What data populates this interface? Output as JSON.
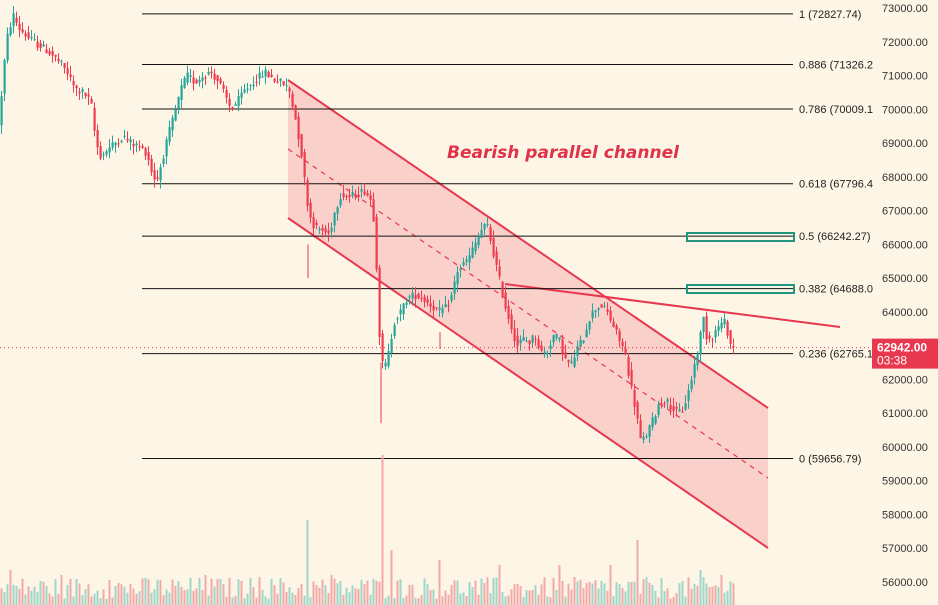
{
  "chart_data": {
    "type": "candlestick",
    "title": "Bearish parallel channel",
    "ylim": [
      55800,
      73200
    ],
    "y_ticks": [
      "73000.00",
      "72000.00",
      "71000.00",
      "70000.00",
      "69000.00",
      "68000.00",
      "67000.00",
      "66000.00",
      "65000.00",
      "64000.00",
      "63000.00",
      "62000.00",
      "61000.00",
      "60000.00",
      "59000.00",
      "58000.00",
      "57000.00",
      "56000.00"
    ],
    "fib_levels": [
      {
        "label": "1 (72827.74)",
        "price": 72827.74
      },
      {
        "label": "0.886 (71326.2",
        "price": 71326.2
      },
      {
        "label": "0.786 (70009.1",
        "price": 70009.1
      },
      {
        "label": "0.618 (67796.4",
        "price": 67796.4
      },
      {
        "label": "0.5 (66242.27)",
        "price": 66242.27
      },
      {
        "label": "0.382 (64688.0",
        "price": 64688.0
      },
      {
        "label": "0.236 (62765.1",
        "price": 62765.1
      },
      {
        "label": "0 (59656.79)",
        "price": 59656.79
      }
    ],
    "current_price": {
      "price": "62942.00",
      "countdown": "03:38",
      "value": 62942
    },
    "price_path": [
      [
        0,
        69500
      ],
      [
        4,
        71000
      ],
      [
        8,
        72100
      ],
      [
        14,
        72800
      ],
      [
        20,
        72400
      ],
      [
        30,
        72100
      ],
      [
        40,
        71900
      ],
      [
        50,
        71700
      ],
      [
        60,
        71400
      ],
      [
        68,
        71100
      ],
      [
        76,
        70600
      ],
      [
        84,
        70500
      ],
      [
        92,
        70200
      ],
      [
        97,
        69000
      ],
      [
        102,
        68600
      ],
      [
        108,
        68800
      ],
      [
        116,
        69000
      ],
      [
        124,
        69200
      ],
      [
        132,
        69000
      ],
      [
        140,
        68900
      ],
      [
        148,
        68700
      ],
      [
        154,
        68000
      ],
      [
        158,
        67900
      ],
      [
        164,
        68600
      ],
      [
        170,
        69300
      ],
      [
        176,
        69900
      ],
      [
        182,
        70600
      ],
      [
        188,
        71000
      ],
      [
        196,
        70800
      ],
      [
        204,
        71000
      ],
      [
        212,
        71100
      ],
      [
        220,
        70800
      ],
      [
        226,
        70400
      ],
      [
        232,
        70000
      ],
      [
        238,
        70200
      ],
      [
        244,
        70500
      ],
      [
        250,
        70700
      ],
      [
        258,
        70900
      ],
      [
        266,
        71100
      ],
      [
        274,
        70900
      ],
      [
        282,
        70800
      ],
      [
        290,
        70600
      ],
      [
        296,
        69800
      ],
      [
        302,
        68800
      ],
      [
        306,
        67800
      ],
      [
        310,
        66900
      ],
      [
        316,
        66500
      ],
      [
        324,
        66400
      ],
      [
        330,
        66300
      ],
      [
        336,
        67000
      ],
      [
        342,
        67500
      ],
      [
        350,
        67400
      ],
      [
        358,
        67500
      ],
      [
        366,
        67600
      ],
      [
        372,
        67300
      ],
      [
        376,
        66500
      ],
      [
        380,
        63500
      ],
      [
        384,
        62300
      ],
      [
        388,
        62500
      ],
      [
        392,
        63200
      ],
      [
        396,
        63800
      ],
      [
        402,
        64000
      ],
      [
        408,
        64400
      ],
      [
        416,
        64500
      ],
      [
        424,
        64400
      ],
      [
        432,
        64200
      ],
      [
        440,
        64000
      ],
      [
        446,
        64100
      ],
      [
        452,
        64400
      ],
      [
        458,
        65200
      ],
      [
        464,
        65400
      ],
      [
        470,
        65600
      ],
      [
        476,
        66000
      ],
      [
        482,
        66400
      ],
      [
        488,
        66600
      ],
      [
        494,
        65800
      ],
      [
        500,
        65000
      ],
      [
        506,
        64200
      ],
      [
        512,
        63600
      ],
      [
        518,
        63000
      ],
      [
        524,
        63200
      ],
      [
        530,
        63100
      ],
      [
        536,
        63300
      ],
      [
        542,
        62800
      ],
      [
        548,
        62800
      ],
      [
        554,
        63300
      ],
      [
        560,
        63200
      ],
      [
        566,
        62600
      ],
      [
        572,
        62400
      ],
      [
        578,
        62900
      ],
      [
        584,
        63200
      ],
      [
        590,
        63800
      ],
      [
        596,
        64100
      ],
      [
        602,
        64200
      ],
      [
        608,
        64000
      ],
      [
        614,
        63600
      ],
      [
        620,
        63200
      ],
      [
        626,
        62800
      ],
      [
        632,
        61800
      ],
      [
        638,
        60900
      ],
      [
        642,
        60100
      ],
      [
        648,
        60400
      ],
      [
        654,
        60800
      ],
      [
        660,
        61300
      ],
      [
        666,
        61400
      ],
      [
        672,
        61200
      ],
      [
        678,
        61000
      ],
      [
        684,
        61100
      ],
      [
        690,
        61700
      ],
      [
        696,
        62500
      ],
      [
        700,
        63000
      ],
      [
        704,
        63900
      ],
      [
        708,
        63200
      ],
      [
        714,
        63300
      ],
      [
        720,
        63600
      ],
      [
        726,
        63700
      ],
      [
        732,
        63000
      ],
      [
        735,
        62942
      ]
    ],
    "volume_spikes": [
      [
        10,
        35
      ],
      [
        60,
        30
      ],
      [
        110,
        25
      ],
      [
        160,
        25
      ],
      [
        205,
        30
      ],
      [
        260,
        28
      ],
      [
        308,
        85
      ],
      [
        330,
        30
      ],
      [
        381,
        150
      ],
      [
        390,
        55
      ],
      [
        440,
        45
      ],
      [
        500,
        40
      ],
      [
        560,
        40
      ],
      [
        610,
        40
      ],
      [
        638,
        65
      ],
      [
        700,
        35
      ],
      [
        720,
        30
      ]
    ]
  }
}
